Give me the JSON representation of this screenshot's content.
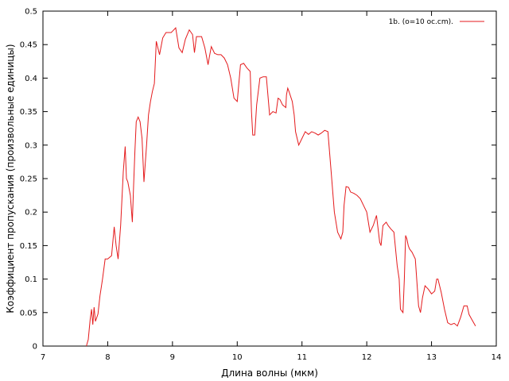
{
  "chart_data": {
    "type": "line",
    "title": "",
    "xlabel": "Длина волны (мкм)",
    "ylabel": "Коэффициент пропускания (произвольные единицы)",
    "xlim": [
      7,
      14
    ],
    "ylim": [
      0,
      0.5
    ],
    "x_ticks": [
      7,
      8,
      9,
      10,
      11,
      12,
      13,
      14
    ],
    "y_ticks": [
      0,
      0.05,
      0.1,
      0.15,
      0.2,
      0.25,
      0.3,
      0.35,
      0.4,
      0.45,
      0.5
    ],
    "x_tick_labels": [
      "7",
      "8",
      "9",
      "10",
      "11",
      "12",
      "13",
      "14"
    ],
    "y_tick_labels": [
      "0",
      "0.05",
      "0.1",
      "0.15",
      "0.2",
      "0.25",
      "0.3",
      "0.35",
      "0.4",
      "0.45",
      "0.5"
    ],
    "grid": false,
    "legend_position": "top-right",
    "series": [
      {
        "name": "1b. (o=10 oc.cm).",
        "color": "#e41a1c",
        "x": [
          7.67,
          7.7,
          7.73,
          7.75,
          7.77,
          7.79,
          7.81,
          7.85,
          7.88,
          7.92,
          7.96,
          8.0,
          8.06,
          8.1,
          8.13,
          8.16,
          8.2,
          8.24,
          8.27,
          8.29,
          8.31,
          8.35,
          8.38,
          8.4,
          8.42,
          8.44,
          8.47,
          8.5,
          8.53,
          8.56,
          8.6,
          8.63,
          8.66,
          8.69,
          8.72,
          8.75,
          8.8,
          8.85,
          8.9,
          8.93,
          8.95,
          8.98,
          9.0,
          9.05,
          9.1,
          9.15,
          9.2,
          9.26,
          9.31,
          9.34,
          9.37,
          9.42,
          9.45,
          9.5,
          9.55,
          9.57,
          9.6,
          9.65,
          9.7,
          9.75,
          9.8,
          9.85,
          9.9,
          9.95,
          10.0,
          10.05,
          10.1,
          10.15,
          10.2,
          10.22,
          10.24,
          10.27,
          10.3,
          10.35,
          10.4,
          10.45,
          10.5,
          10.55,
          10.6,
          10.63,
          10.66,
          10.7,
          10.75,
          10.76,
          10.78,
          10.8,
          10.85,
          10.88,
          10.9,
          10.95,
          11.0,
          11.05,
          11.1,
          11.15,
          11.2,
          11.25,
          11.3,
          11.35,
          11.4,
          11.45,
          11.5,
          11.55,
          11.6,
          11.63,
          11.65,
          11.68,
          11.72,
          11.75,
          11.8,
          11.85,
          11.9,
          11.95,
          12.0,
          12.05,
          12.1,
          12.15,
          12.2,
          12.22,
          12.25,
          12.3,
          12.33,
          12.37,
          12.42,
          12.47,
          12.5,
          12.52,
          12.56,
          12.58,
          12.6,
          12.62,
          12.64,
          12.66,
          12.7,
          12.75,
          12.8,
          12.83,
          12.86,
          12.9,
          12.95,
          13.0,
          13.05,
          13.08,
          13.1,
          13.15,
          13.2,
          13.25,
          13.3,
          13.35,
          13.4,
          13.45,
          13.5,
          13.55,
          13.58,
          13.62,
          13.65,
          13.68
        ],
        "y": [
          0.0,
          0.01,
          0.04,
          0.055,
          0.032,
          0.058,
          0.037,
          0.048,
          0.075,
          0.1,
          0.13,
          0.13,
          0.135,
          0.178,
          0.15,
          0.13,
          0.18,
          0.26,
          0.298,
          0.25,
          0.245,
          0.225,
          0.185,
          0.24,
          0.29,
          0.335,
          0.342,
          0.335,
          0.31,
          0.245,
          0.3,
          0.345,
          0.365,
          0.38,
          0.392,
          0.455,
          0.435,
          0.46,
          0.468,
          0.468,
          0.468,
          0.468,
          0.47,
          0.475,
          0.445,
          0.438,
          0.458,
          0.472,
          0.465,
          0.438,
          0.462,
          0.462,
          0.462,
          0.445,
          0.42,
          0.432,
          0.447,
          0.437,
          0.435,
          0.435,
          0.43,
          0.42,
          0.4,
          0.37,
          0.365,
          0.42,
          0.422,
          0.415,
          0.41,
          0.35,
          0.315,
          0.315,
          0.36,
          0.4,
          0.402,
          0.402,
          0.345,
          0.35,
          0.348,
          0.37,
          0.368,
          0.36,
          0.356,
          0.375,
          0.385,
          0.38,
          0.365,
          0.345,
          0.32,
          0.3,
          0.31,
          0.32,
          0.316,
          0.32,
          0.318,
          0.315,
          0.318,
          0.322,
          0.32,
          0.26,
          0.2,
          0.17,
          0.16,
          0.17,
          0.21,
          0.238,
          0.237,
          0.23,
          0.228,
          0.225,
          0.22,
          0.21,
          0.2,
          0.17,
          0.18,
          0.195,
          0.155,
          0.15,
          0.18,
          0.185,
          0.18,
          0.175,
          0.17,
          0.12,
          0.1,
          0.055,
          0.05,
          0.1,
          0.165,
          0.16,
          0.15,
          0.145,
          0.14,
          0.13,
          0.06,
          0.05,
          0.072,
          0.09,
          0.085,
          0.078,
          0.082,
          0.1,
          0.1,
          0.08,
          0.055,
          0.035,
          0.032,
          0.034,
          0.03,
          0.043,
          0.06,
          0.06,
          0.047,
          0.04,
          0.035,
          0.03
        ]
      }
    ]
  }
}
